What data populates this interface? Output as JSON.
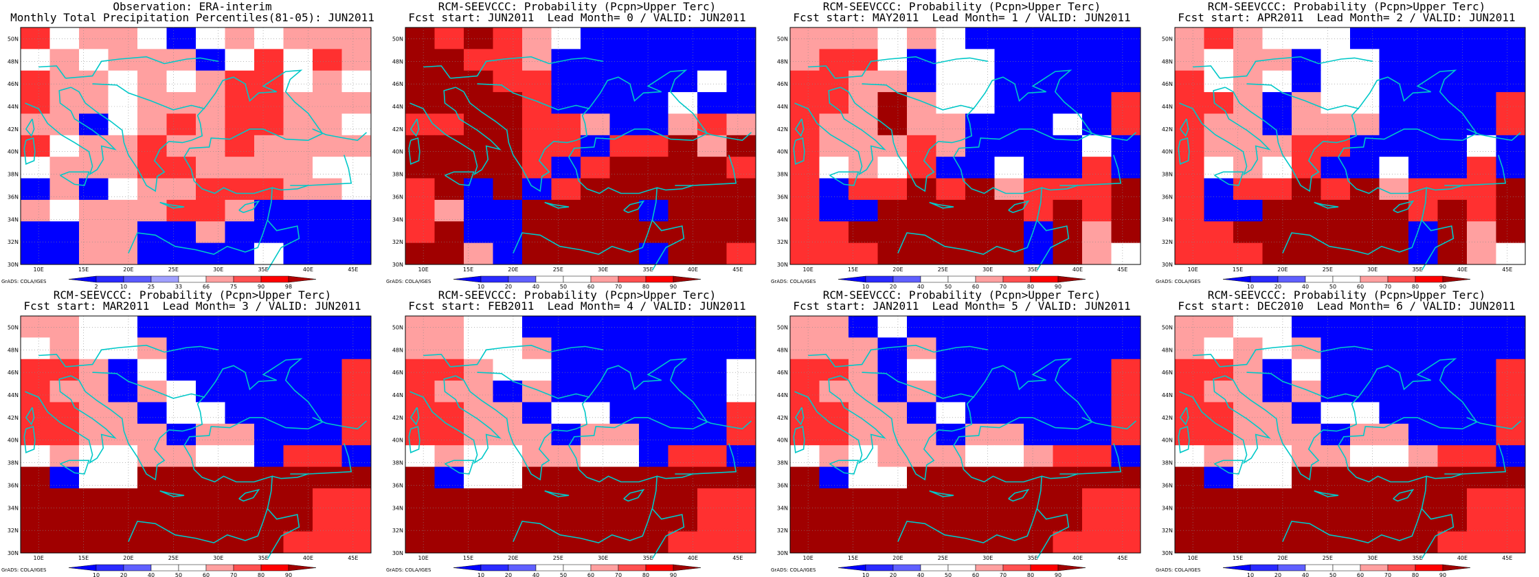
{
  "credit": "GrADS: COLA/IGES",
  "lat_labels": [
    "30N",
    "32N",
    "34N",
    "36N",
    "38N",
    "40N",
    "42N",
    "44N",
    "46N",
    "48N",
    "50N"
  ],
  "lon_labels": [
    "10E",
    "15E",
    "20E",
    "25E",
    "30E",
    "35E",
    "40E",
    "45E"
  ],
  "colors": {
    "deep_blue": "#0000ff",
    "blue": "#2a2aff",
    "light_blue": "#a0a0ff",
    "white": "#ffffff",
    "light_red": "#ffa0a0",
    "red": "#ff3030",
    "deep_red": "#a00000",
    "coast": "#00c8c8"
  },
  "colorbars": {
    "obs": {
      "labels": [
        "2",
        "10",
        "25",
        "33",
        "66",
        "75",
        "90",
        "98"
      ],
      "colors": [
        "#0000ff",
        "#2a2aff",
        "#5a5aff",
        "#a0a0ff",
        "#ffffff",
        "#ffa0a0",
        "#ff5050",
        "#ff0000",
        "#b00000"
      ]
    },
    "prob": {
      "labels": [
        "10",
        "20",
        "40",
        "50",
        "60",
        "70",
        "80",
        "90"
      ],
      "colors": [
        "#0000ff",
        "#2a2aff",
        "#6060ff",
        "#ffffff",
        "#ffffff",
        "#ffa0a0",
        "#ff5050",
        "#ff0000",
        "#a00000"
      ]
    }
  },
  "panels": [
    {
      "title1": "Observation: ERA-interim",
      "title2": "Monthly Total Precipitation Percentiles(81-05): JUN2011",
      "bar": "obs",
      "grid": [
        "RWLLWBWLWLLL",
        "WLWLLLBWRWRL",
        "RLLWLWLRRWLW",
        "RLLWLLLRRLLL",
        "LLBWLRLRRLLW",
        "RWLLRLLRLLLL",
        "WLLLRRLLLLWW",
        "BLBWLLRRRLLW",
        "LWLLLRRLBBBB",
        "BBLLBBLBBBBB",
        "BBLLBBBBWBBB"
      ]
    },
    {
      "title1": "RCM-SEEVCCC: Probability (Pcpn>Upper Terc)",
      "title2": "Fcst start: JUN2011  Lead Month= 0 / VALID: JUN2011",
      "bar": "prob",
      "grid": [
        "DRDRLWBBBBBB",
        "DDRRLBBBBBBB",
        "DDDRRBBBBBWB",
        "DDDDRBBBBWBB",
        "RRDDRRLBBLRL",
        "DDDDRRBRRDLD",
        "DDDDRBRDDDDR",
        "RDBDBRDDDDDD",
        "RLBBDDDDBDDD",
        "RDBBDDDDDDDD",
        "DDLBDDDDBDDR"
      ]
    },
    {
      "title1": "RCM-SEEVCCC: Probability (Pcpn>Upper Terc)",
      "title2": "Fcst start: MAY2011  Lead Month= 1 / VALID: JUN2011",
      "bar": "prob",
      "grid": [
        "LLLWLWBBBBBB",
        "LRRWBWWBBBBB",
        "RRLLBWWBBBBB",
        "RRLDLWWBBBBR",
        "RLLDLLBBBWBR",
        "RLLLRLBBBBWB",
        "RWLWRBBWBBRB",
        "RBRRDRDLRRRD",
        "RBBDDDDDRDRD",
        "RRDDDDDDBDLD",
        "RRRDDDDDBDLW"
      ]
    },
    {
      "title1": "RCM-SEEVCCC: Probability (Pcpn>Upper Terc)",
      "title2": "Fcst start: APR2011  Lead Month= 2 / VALID: JUN2011",
      "bar": "prob",
      "grid": [
        "LRLWWWBBBBBB",
        "LWLLBWWBBBBB",
        "RWLWBWWBBBBB",
        "RRLBLWWBBBBR",
        "RLLBLLLBBBBR",
        "RLLLRRBBBBWB",
        "RWLWRBBWBBRB",
        "RBRRDRDLRRRD",
        "RBBDDDDDRDRD",
        "RRDDDDDDBDLD",
        "RRRDDDDDBDLW"
      ]
    },
    {
      "title1": "RCM-SEEVCCC: Probability (Pcpn>Upper Terc)",
      "title2": "Fcst start: MAR2011  Lead Month= 3 / VALID: JUN2011",
      "bar": "prob",
      "grid": [
        "LLWWBBBBBBBB",
        "WLWWLBBBBBBB",
        "RRLBWBBBBBBR",
        "RLLBLWBBBBBR",
        "RRLLBWWBBBBR",
        "RRLLLBLLBBBR",
        "WLWWLLWWBRRB",
        "DBWWDDDDDDDD",
        "DDDDDDDDDDRR",
        "DDDDDDDDDDRR",
        "DDDDDDDDDRRR"
      ]
    },
    {
      "title1": "RCM-SEEVCCC: Probability (Pcpn>Upper Terc)",
      "title2": "Fcst start: FEB2011  Lead Month= 4 / VALID: JUN2011",
      "bar": "prob",
      "grid": [
        "LLWWBBBBBBBB",
        "LLWWLBBBBBBB",
        "RRLWWBBBBBBW",
        "RLLBLBBBBBBW",
        "RRLLBWWBBBBR",
        "RRLLLBLLBBBR",
        "WLWWLLWWBRRB",
        "DBWWDDDDDDDD",
        "DDDDDDDDDDRR",
        "DDDDDDDDDDRR",
        "DDDDDDDDDRRR"
      ]
    },
    {
      "title1": "RCM-SEEVCCC: Probability (Pcpn>Upper Terc)",
      "title2": "Fcst start: JAN2011  Lead Month= 5 / VALID: JUN2011",
      "bar": "prob",
      "grid": [
        "LLBWBBBBBBBB",
        "LLLBLBBBBBBB",
        "RRLBWBBBBBBR",
        "RLLBLBBBBBBR",
        "RRLLBWBBBBBR",
        "RRLLLBLLBBBR",
        "WLWLLLWWLRRB",
        "DBWWDDDDDDDD",
        "DDDDDDDDDDRR",
        "DDDDDDDDDDRR",
        "DDDDDDDDDRRR"
      ]
    },
    {
      "title1": "RCM-SEEVCCC: Probability (Pcpn>Upper Terc)",
      "title2": "Fcst start: DEC2010  Lead Month= 6 / VALID: JUN2011",
      "bar": "prob",
      "grid": [
        "LLWWBBBBBBBB",
        "LWLWLBBBBBBB",
        "RRLBWBBBBBBR",
        "RLLBLBBBBBBR",
        "RRLLBWWBBBBR",
        "RRLLLBLLBBBR",
        "WLWWLLWWLRRB",
        "DBWWDDDDDDDD",
        "DDDDDDDDDDRR",
        "DDDDDDDDDDRR",
        "DDDDDDDDDRRR"
      ]
    }
  ]
}
